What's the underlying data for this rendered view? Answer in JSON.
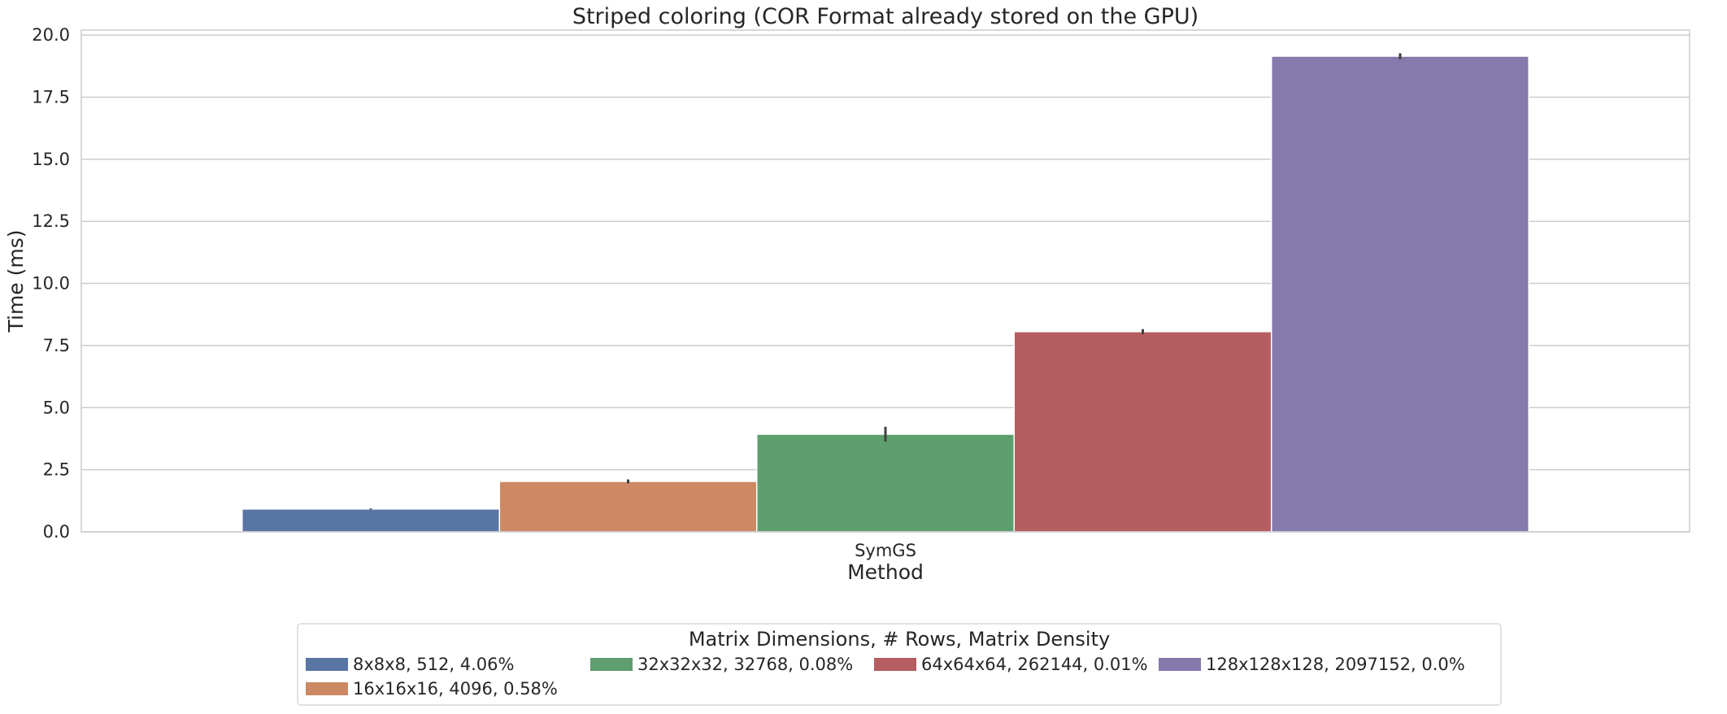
{
  "chart_data": {
    "type": "bar",
    "title": "Striped coloring (COR Format already stored on the GPU)",
    "xlabel": "Method",
    "ylabel": "Time (ms)",
    "categories": [
      "SymGS"
    ],
    "ylim": [
      0,
      20.2
    ],
    "yticks": [
      "0.0",
      "2.5",
      "5.0",
      "7.5",
      "10.0",
      "12.5",
      "15.0",
      "17.5",
      "20.0"
    ],
    "grid": true,
    "legend": {
      "title": "Matrix Dimensions, # Rows, Matrix Density",
      "placement": "bottom-center"
    },
    "series": [
      {
        "name": "8x8x8, 512, 4.06%",
        "values": [
          0.92
        ],
        "error": [
          0.02
        ],
        "color": "#5875a4"
      },
      {
        "name": "16x16x16, 4096, 0.58%",
        "values": [
          2.03
        ],
        "error": [
          0.08
        ],
        "color": "#cc8963"
      },
      {
        "name": "32x32x32, 32768, 0.08%",
        "values": [
          3.93
        ],
        "error": [
          0.3
        ],
        "color": "#5f9e6e"
      },
      {
        "name": "64x64x64, 262144, 0.01%",
        "values": [
          8.06
        ],
        "error": [
          0.1
        ],
        "color": "#b55d60"
      },
      {
        "name": "128x128x128, 2097152, 0.0%",
        "values": [
          19.15
        ],
        "error": [
          0.12
        ],
        "color": "#857aab"
      }
    ]
  }
}
